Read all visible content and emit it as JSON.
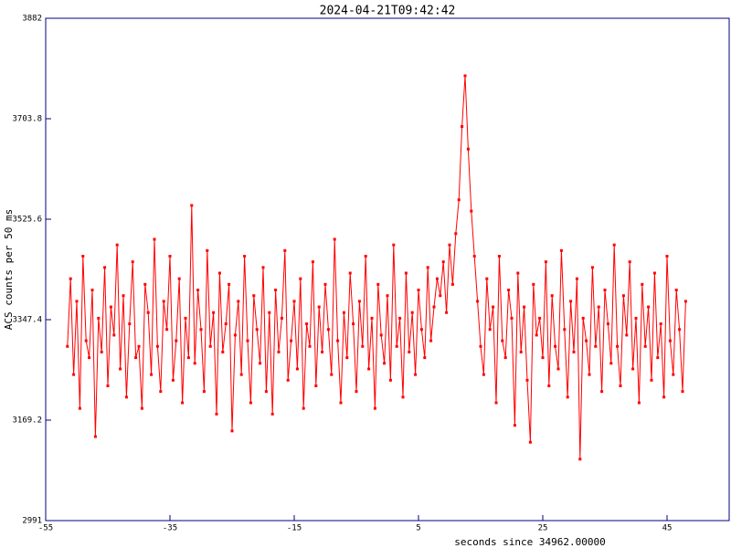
{
  "chart_data": {
    "type": "line",
    "title": "2024-04-21T09:42:42",
    "x_label": "seconds since 34962.00000",
    "y_label": "ACS counts per 50 ms",
    "xlim": [
      -55,
      55
    ],
    "xticks": [
      -55,
      -35,
      -15,
      5,
      25,
      45
    ],
    "ylim": [
      2991,
      3882
    ],
    "yticks": [
      2991,
      3169.2,
      3347.4,
      3525.6,
      3703.8,
      3882
    ],
    "color": "#ff0000",
    "x": [
      -51.5,
      -51,
      -50.5,
      -50,
      -49.5,
      -49,
      -48.5,
      -48,
      -47.5,
      -47,
      -46.5,
      -46,
      -45.5,
      -45,
      -44.5,
      -44,
      -43.5,
      -43,
      -42.5,
      -42,
      -41.5,
      -41,
      -40.5,
      -40,
      -39.5,
      -39,
      -38.5,
      -38,
      -37.5,
      -37,
      -36.5,
      -36,
      -35.5,
      -35,
      -34.5,
      -34,
      -33.5,
      -33,
      -32.5,
      -32,
      -31.5,
      -31,
      -30.5,
      -30,
      -29.5,
      -29,
      -28.5,
      -28,
      -27.5,
      -27,
      -26.5,
      -26,
      -25.5,
      -25,
      -24.5,
      -24,
      -23.5,
      -23,
      -22.5,
      -22,
      -21.5,
      -21,
      -20.5,
      -20,
      -19.5,
      -19,
      -18.5,
      -18,
      -17.5,
      -17,
      -16.5,
      -16,
      -15.5,
      -15,
      -14.5,
      -14,
      -13.5,
      -13,
      -12.5,
      -12,
      -11.5,
      -11,
      -10.5,
      -10,
      -9.5,
      -9,
      -8.5,
      -8,
      -7.5,
      -7,
      -6.5,
      -6,
      -5.5,
      -5,
      -4.5,
      -4,
      -3.5,
      -3,
      -2.5,
      -2,
      -1.5,
      -1,
      -0.5,
      0,
      0.5,
      1,
      1.5,
      2,
      2.5,
      3,
      3.5,
      4,
      4.5,
      5,
      5.5,
      6,
      6.5,
      7,
      7.5,
      8,
      8.5,
      9,
      9.5,
      10,
      10.5,
      11,
      11.5,
      12,
      12.5,
      13,
      13.5,
      14,
      14.5,
      15,
      15.5,
      16,
      16.5,
      17,
      17.5,
      18,
      18.5,
      19,
      19.5,
      20,
      20.5,
      21,
      21.5,
      22,
      22.5,
      23,
      23.5,
      24,
      24.5,
      25,
      25.5,
      26,
      26.5,
      27,
      27.5,
      28,
      28.5,
      29,
      29.5,
      30,
      30.5,
      31,
      31.5,
      32,
      32.5,
      33,
      33.5,
      34,
      34.5,
      35,
      35.5,
      36,
      36.5,
      37,
      37.5,
      38,
      38.5,
      39,
      39.5,
      40,
      40.5,
      41,
      41.5,
      42,
      42.5,
      43,
      43.5,
      44,
      44.5,
      45,
      45.5,
      46,
      46.5,
      47,
      47.5,
      48
    ],
    "values": [
      3300,
      3420,
      3250,
      3380,
      3190,
      3460,
      3310,
      3280,
      3400,
      3140,
      3350,
      3290,
      3440,
      3230,
      3370,
      3320,
      3480,
      3260,
      3390,
      3210,
      3340,
      3450,
      3280,
      3300,
      3190,
      3410,
      3360,
      3250,
      3490,
      3300,
      3220,
      3380,
      3330,
      3460,
      3240,
      3310,
      3420,
      3200,
      3350,
      3280,
      3550,
      3270,
      3400,
      3330,
      3220,
      3470,
      3300,
      3360,
      3180,
      3430,
      3290,
      3340,
      3410,
      3150,
      3320,
      3380,
      3250,
      3460,
      3310,
      3200,
      3390,
      3330,
      3270,
      3440,
      3220,
      3360,
      3180,
      3400,
      3290,
      3350,
      3470,
      3240,
      3310,
      3380,
      3260,
      3420,
      3190,
      3340,
      3300,
      3450,
      3230,
      3370,
      3290,
      3410,
      3330,
      3250,
      3490,
      3310,
      3200,
      3360,
      3280,
      3430,
      3340,
      3220,
      3380,
      3300,
      3460,
      3260,
      3350,
      3190,
      3410,
      3320,
      3270,
      3390,
      3240,
      3480,
      3300,
      3350,
      3210,
      3430,
      3290,
      3360,
      3250,
      3400,
      3330,
      3280,
      3440,
      3310,
      3370,
      3420,
      3390,
      3450,
      3360,
      3480,
      3410,
      3500,
      3560,
      3690,
      3780,
      3650,
      3540,
      3460,
      3380,
      3300,
      3250,
      3420,
      3330,
      3370,
      3200,
      3460,
      3310,
      3280,
      3400,
      3350,
      3160,
      3430,
      3290,
      3370,
      3240,
      3130,
      3410,
      3320,
      3350,
      3280,
      3450,
      3230,
      3390,
      3300,
      3260,
      3470,
      3330,
      3210,
      3380,
      3290,
      3420,
      3100,
      3350,
      3310,
      3250,
      3440,
      3300,
      3370,
      3220,
      3400,
      3340,
      3270,
      3480,
      3300,
      3230,
      3390,
      3320,
      3450,
      3260,
      3350,
      3200,
      3410,
      3300,
      3370,
      3240,
      3430,
      3280,
      3340,
      3210,
      3460,
      3310,
      3250,
      3400,
      3330,
      3220,
      3380
    ]
  }
}
